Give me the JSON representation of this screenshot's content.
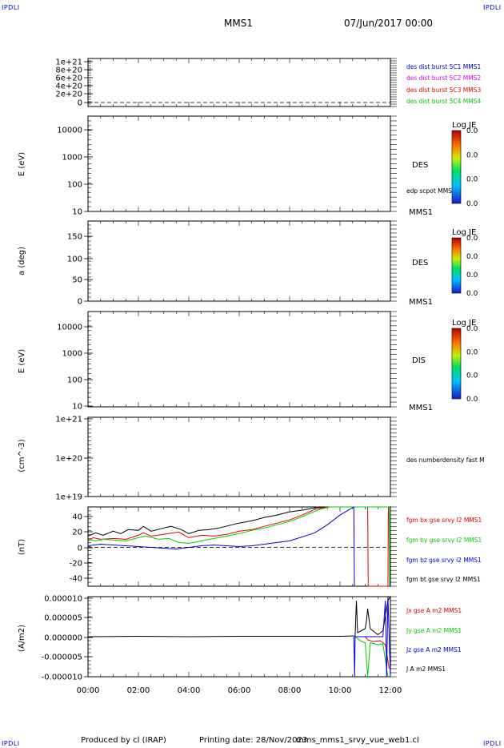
{
  "header": {
    "corner_tl": "IPDLI",
    "corner_tr": "IPDLI",
    "corner_bl": "IPDLI",
    "corner_br": "IPDLI",
    "mission": "MMS1",
    "datetime": "07/Jun/2017 00:00"
  },
  "footer": {
    "producer": "Produced by cl (IRAP)",
    "printing": "Printing date: 28/Nov/2023",
    "file": "mms_mms1_srvy_vue_web1.cl"
  },
  "colors": {
    "blue": "#0000dd",
    "magenta": "#dd00dd",
    "red": "#dd0000",
    "green": "#00cc00",
    "black": "#000000"
  },
  "chart_data": [
    {
      "type": "line",
      "panel": "des-dist-burst",
      "ylabel": "",
      "yticks": [
        "1e+21",
        "8e+20",
        "6e+20",
        "4e+20",
        "2e+20",
        "0"
      ],
      "ylim": [
        0,
        1e+21
      ],
      "zero_line": true,
      "legend": [
        {
          "label": "des dist burst 5C1 MMS1",
          "color": "#0000dd"
        },
        {
          "label": "des dist burst 5C2 MMS2",
          "color": "#dd00dd"
        },
        {
          "label": "des dist burst 5C3 MMS3",
          "color": "#dd0000"
        },
        {
          "label": "des dist burst 5C4 MMS4",
          "color": "#00cc00"
        }
      ],
      "series": []
    },
    {
      "type": "heatmap",
      "panel": "des-energy",
      "ylabel": "E (eV)",
      "scale": "log",
      "yticks": [
        "10000",
        "1000",
        "100",
        "10"
      ],
      "ylim": [
        10,
        20000
      ],
      "label": "DES",
      "overlay_label": "edp scpot MMS1",
      "bottom_label": "MMS1",
      "colorbar": {
        "title": "Log JE",
        "ticks": [
          "0.0",
          "0.0",
          "0.0",
          "0.0"
        ]
      }
    },
    {
      "type": "heatmap",
      "panel": "des-pitch",
      "ylabel": "a (deg)",
      "yticks": [
        "150",
        "100",
        "50",
        "0"
      ],
      "ylim": [
        0,
        180
      ],
      "label": "DES",
      "bottom_label": "MMS1",
      "colorbar": {
        "title": "Log JE",
        "ticks": [
          "0.0",
          "0.0",
          "0.0",
          "0.0"
        ]
      }
    },
    {
      "type": "heatmap",
      "panel": "dis-energy",
      "ylabel": "E (eV)",
      "scale": "log",
      "yticks": [
        "10000",
        "1000",
        "100",
        "10"
      ],
      "ylim": [
        10,
        20000
      ],
      "label": "DIS",
      "bottom_label": "MMS1",
      "colorbar": {
        "title": "Log JE",
        "ticks": [
          "0.0",
          "0.0",
          "0.0",
          "0.0"
        ]
      }
    },
    {
      "type": "line",
      "panel": "des-density",
      "ylabel": "(cm^-3)",
      "scale": "log",
      "yticks": [
        "1e+21",
        "1e+20",
        "1e+19"
      ],
      "ylim": [
        1e+19,
        1e+21
      ],
      "legend": [
        {
          "label": "des numberdensity fast M",
          "color": "#000000"
        }
      ],
      "series": []
    },
    {
      "type": "line",
      "panel": "fgm",
      "ylabel": "(nT)",
      "yticks": [
        "40",
        "20",
        "0",
        "-20",
        "-40"
      ],
      "ylim": [
        -48,
        50
      ],
      "zero_line": true,
      "legend": [
        {
          "label": "fgm bx gse srvy l2 MMS1",
          "color": "#dd0000"
        },
        {
          "label": "fgm by gse srvy l2 MMS1",
          "color": "#00cc00"
        },
        {
          "label": "fgm bz gse srvy l2 MMS1",
          "color": "#0000dd"
        },
        {
          "label": "fgm bt gse srvy l2 MMS1",
          "color": "#000000"
        }
      ],
      "series": [
        {
          "name": "fgm bx gse srvy l2 MMS1",
          "color": "#dd0000",
          "x": [
            0,
            0.2,
            0.5,
            1.0,
            1.5,
            2.0,
            2.2,
            2.5,
            3.0,
            3.6,
            4.0,
            4.5,
            5.0,
            5.5,
            6.0,
            6.5,
            7.0,
            7.5,
            8.0,
            8.5,
            9.0,
            9.5,
            10.0,
            10.6,
            11.0,
            11.1,
            11.12,
            11.9,
            11.92
          ],
          "y": [
            8,
            12,
            10,
            11,
            10,
            15,
            18,
            14,
            16,
            19,
            12,
            15,
            14,
            16,
            20,
            22,
            26,
            30,
            34,
            40,
            47,
            50,
            50,
            50,
            50,
            50,
            -48,
            -48,
            50
          ]
        },
        {
          "name": "fgm by gse srvy l2 MMS1",
          "color": "#00cc00",
          "x": [
            0,
            0.3,
            0.6,
            1.0,
            1.5,
            2.0,
            2.3,
            2.8,
            3.2,
            3.6,
            4.0,
            4.5,
            5.0,
            5.5,
            6.0,
            6.5,
            7.0,
            7.5,
            8.0,
            8.5,
            8.8,
            9.2,
            9.6,
            11.95,
            11.97
          ],
          "y": [
            10,
            8,
            10,
            9,
            8,
            12,
            14,
            10,
            11,
            6,
            5,
            8,
            11,
            14,
            17,
            21,
            24,
            28,
            32,
            38,
            42,
            47,
            50,
            50,
            -48
          ]
        },
        {
          "name": "fgm bz gse srvy l2 MMS1",
          "color": "#0000dd",
          "x": [
            0,
            0.5,
            1.0,
            2.0,
            2.5,
            3.0,
            3.5,
            4.0,
            4.5,
            5.0,
            5.5,
            6.0,
            6.5,
            7.0,
            7.5,
            8.0,
            8.5,
            9.0,
            9.5,
            10.0,
            10.55,
            10.57
          ],
          "y": [
            2,
            4,
            3,
            1,
            0,
            -1,
            -2,
            0,
            2,
            3,
            2,
            1,
            2,
            4,
            6,
            8,
            13,
            18,
            28,
            40,
            50,
            -48
          ]
        },
        {
          "name": "fgm bt gse srvy l2 MMS1",
          "color": "#000000",
          "x": [
            0,
            0.3,
            0.6,
            1.0,
            1.3,
            1.6,
            2.0,
            2.2,
            2.5,
            3.0,
            3.3,
            3.7,
            4.0,
            4.4,
            4.8,
            5.2,
            5.6,
            6.0,
            6.5,
            7.0,
            7.5,
            8.0,
            8.5,
            9.0,
            9.4
          ],
          "y": [
            14,
            18,
            15,
            20,
            17,
            22,
            21,
            26,
            20,
            24,
            26,
            22,
            17,
            21,
            22,
            24,
            27,
            30,
            33,
            37,
            40,
            44,
            46,
            49,
            50
          ]
        }
      ]
    },
    {
      "type": "line",
      "panel": "current",
      "ylabel": "(A/m2)",
      "yticks": [
        "0.000010",
        "0.000005",
        "0.000000",
        "-0.000005",
        "-0.000010"
      ],
      "ylim": [
        -1e-05,
        1e-05
      ],
      "legend": [
        {
          "label": "Jx gse A m2 MMS1",
          "color": "#dd0000"
        },
        {
          "label": "Jy gse A m2 MMS1",
          "color": "#00cc00"
        },
        {
          "label": "Jz gse A m2 MMS1",
          "color": "#0000dd"
        },
        {
          "label": "J A m2 MMS1",
          "color": "#000000"
        }
      ],
      "series": [
        {
          "name": "J A m2 MMS1",
          "color": "#000000",
          "x": [
            0,
            2.0,
            4.0,
            6.0,
            8.0,
            10.0,
            10.6,
            10.65,
            10.7,
            11.0,
            11.05,
            11.1,
            11.2,
            11.5,
            11.7,
            11.8,
            11.9,
            12.0
          ],
          "y": [
            0,
            1e-07,
            0,
            1e-07,
            1e-07,
            1e-07,
            2e-07,
            9e-06,
            1e-06,
            2e-06,
            4e-06,
            7e-06,
            2e-06,
            5e-07,
            1.5e-06,
            5e-06,
            9e-06,
            1e-05
          ]
        },
        {
          "name": "Jx gse A m2 MMS1",
          "color": "#dd0000",
          "x": [
            10.6,
            11.0,
            11.1,
            11.3,
            11.6,
            11.8,
            11.95
          ],
          "y": [
            0,
            0,
            -8e-07,
            -1.2e-06,
            -1e-06,
            -2e-06,
            -8e-06
          ]
        },
        {
          "name": "Jy gse A m2 MMS1",
          "color": "#00cc00",
          "x": [
            10.6,
            10.8,
            11.0,
            11.1,
            11.2,
            11.5,
            11.7,
            11.9
          ],
          "y": [
            0,
            -1e-06,
            -1.5e-06,
            -1e-05,
            -1.5e-06,
            -2e-06,
            -1.8e-06,
            -1e-05
          ]
        },
        {
          "name": "Jz gse A m2 MMS1",
          "color": "#0000dd",
          "x": [
            10.55,
            10.58,
            10.6,
            11.7,
            11.8,
            11.85,
            11.9,
            12.0
          ],
          "y": [
            0,
            -1e-05,
            0,
            0,
            9e-06,
            -1e-05,
            1e-05,
            -1e-05
          ]
        }
      ]
    }
  ],
  "xaxis": {
    "ticks": [
      "00:00",
      "02:00",
      "04:00",
      "06:00",
      "08:00",
      "10:00",
      "12:00"
    ],
    "range_hours": [
      0,
      12
    ]
  }
}
